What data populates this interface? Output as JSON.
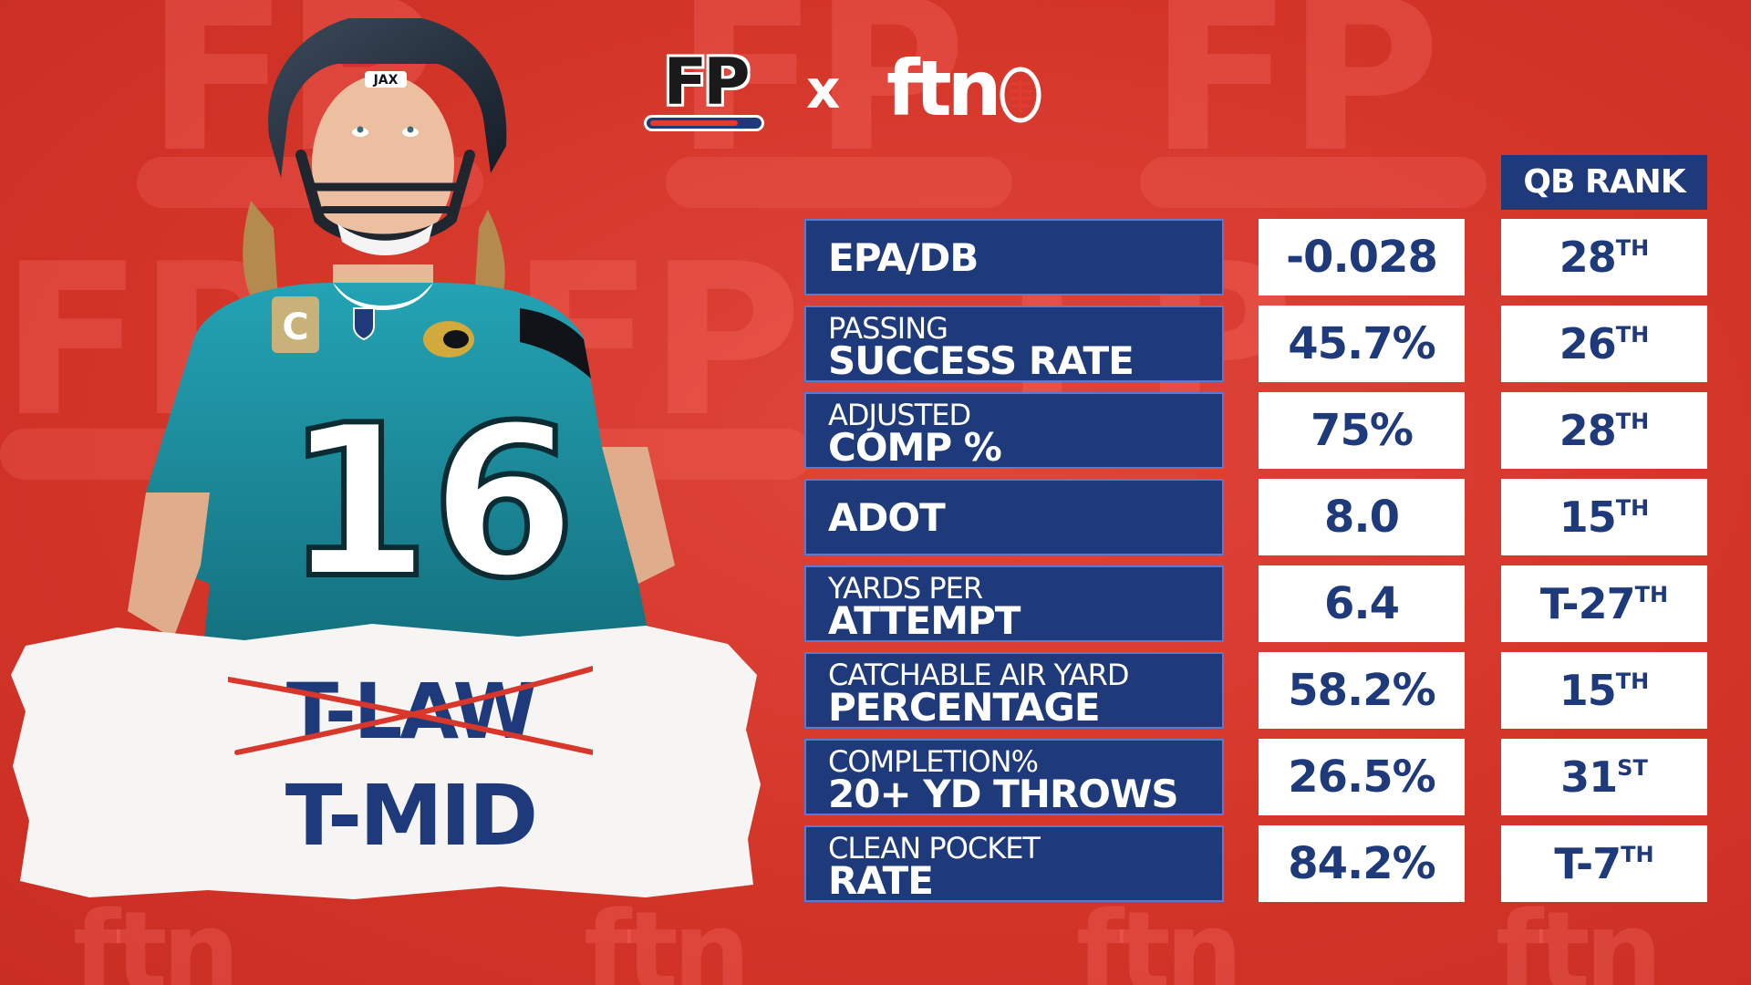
{
  "brand": {
    "fp_logo": "FP",
    "separator": "x",
    "ftn_logo": "ftn"
  },
  "label": {
    "old_nickname": "T-LAW",
    "new_nickname": "T-MID"
  },
  "table": {
    "rank_header": "QB RANK",
    "rows": [
      {
        "line1": "",
        "line2": "EPA/DB",
        "value": "-0.028",
        "rank": "28",
        "suffix": "TH"
      },
      {
        "line1": "PASSING",
        "line2": "SUCCESS RATE",
        "value": "45.7%",
        "rank": "26",
        "suffix": "TH"
      },
      {
        "line1": "ADJUSTED",
        "line2": "COMP %",
        "value": "75%",
        "rank": "28",
        "suffix": "TH"
      },
      {
        "line1": "",
        "line2": "ADOT",
        "value": "8.0",
        "rank": "15",
        "suffix": "TH"
      },
      {
        "line1": "YARDS PER",
        "line2": "ATTEMPT",
        "value": "6.4",
        "rank": "T-27",
        "suffix": "TH"
      },
      {
        "line1": "CATCHABLE AIR YARD",
        "line2": "PERCENTAGE",
        "value": "58.2%",
        "rank": "15",
        "suffix": "TH"
      },
      {
        "line1": "COMPLETION%",
        "line2": "20+ YD THROWS",
        "value": "26.5%",
        "rank": "31",
        "suffix": "ST"
      },
      {
        "line1": "CLEAN POCKET",
        "line2": "RATE",
        "value": "84.2%",
        "rank": "T-7",
        "suffix": "TH"
      }
    ]
  },
  "player": {
    "helmet_text": "JAX",
    "jersey_number": "16",
    "captain_patch": "C"
  },
  "colors": {
    "background": "#d93a2e",
    "navy": "#1f3a7a",
    "teal": "#1b8ea0",
    "white": "#ffffff"
  },
  "icons": [
    "football-icon"
  ]
}
